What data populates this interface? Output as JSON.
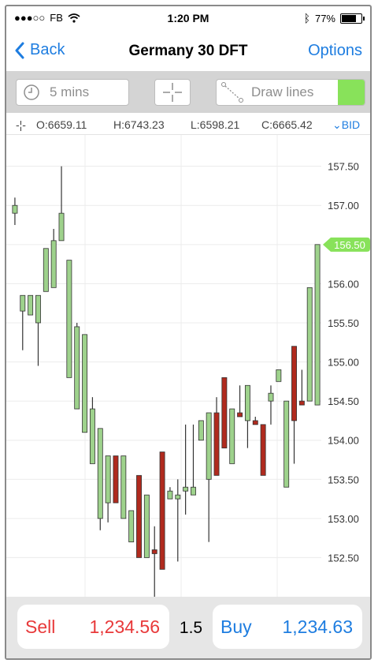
{
  "status_bar": {
    "carrier": "FB",
    "time": "1:20 PM",
    "battery": "77%",
    "battery_level": 0.77
  },
  "nav": {
    "back_label": "Back",
    "title": "Germany 30 DFT",
    "options_label": "Options"
  },
  "toolbar": {
    "timeframe": "5 mins",
    "draw_lines": "Draw lines"
  },
  "ohlc": {
    "open": "O:6659.11",
    "high": "H:6743.23",
    "low": "L:6598.21",
    "close": "C:6665.42",
    "price_side": "BID"
  },
  "chart_data": {
    "type": "candlestick",
    "y_ticks": [
      "157.50",
      "157.00",
      "156.50",
      "156.00",
      "155.50",
      "155.00",
      "154.50",
      "154.00",
      "153.50",
      "153.00",
      "152.50"
    ],
    "ylim": [
      152.0,
      157.9
    ],
    "current_price_label": "156.50",
    "current_price": 156.5,
    "up_color": "#9ed28c",
    "down_color": "#b02a1e",
    "candles": [
      {
        "o": 156.9,
        "c": 157.0,
        "h": 157.1,
        "l": 156.75
      },
      {
        "o": 155.65,
        "c": 155.85,
        "h": 155.85,
        "l": 155.15
      },
      {
        "o": 155.6,
        "c": 155.85,
        "h": 155.85,
        "l": 155.6
      },
      {
        "o": 155.5,
        "c": 155.85,
        "h": 155.85,
        "l": 154.95
      },
      {
        "o": 155.9,
        "c": 156.45,
        "h": 156.45,
        "l": 155.9
      },
      {
        "o": 155.95,
        "c": 156.55,
        "h": 156.7,
        "l": 155.95
      },
      {
        "o": 156.55,
        "c": 156.9,
        "h": 157.5,
        "l": 156.55
      },
      {
        "o": 154.8,
        "c": 156.3,
        "h": 156.3,
        "l": 154.8
      },
      {
        "o": 154.4,
        "c": 155.45,
        "h": 155.5,
        "l": 154.4
      },
      {
        "o": 154.1,
        "c": 155.35,
        "h": 155.35,
        "l": 154.1
      },
      {
        "o": 153.7,
        "c": 154.4,
        "h": 154.55,
        "l": 153.7
      },
      {
        "o": 153.0,
        "c": 154.15,
        "h": 154.15,
        "l": 152.85
      },
      {
        "o": 153.2,
        "c": 153.8,
        "h": 153.8,
        "l": 152.95
      },
      {
        "o": 153.8,
        "c": 153.2,
        "h": 153.8,
        "l": 153.2
      },
      {
        "o": 153.0,
        "c": 153.8,
        "h": 153.8,
        "l": 153.0
      },
      {
        "o": 152.7,
        "c": 153.1,
        "h": 153.1,
        "l": 152.7
      },
      {
        "o": 153.55,
        "c": 152.5,
        "h": 153.55,
        "l": 152.5
      },
      {
        "o": 152.5,
        "c": 153.3,
        "h": 153.3,
        "l": 152.5
      },
      {
        "o": 152.6,
        "c": 152.55,
        "h": 152.9,
        "l": 151.9
      },
      {
        "o": 153.85,
        "c": 152.35,
        "h": 153.85,
        "l": 152.35
      },
      {
        "o": 153.25,
        "c": 153.35,
        "h": 153.4,
        "l": 153.25
      },
      {
        "o": 153.25,
        "c": 153.3,
        "h": 153.5,
        "l": 152.45
      },
      {
        "o": 153.35,
        "c": 153.4,
        "h": 154.2,
        "l": 153.05
      },
      {
        "o": 153.3,
        "c": 153.4,
        "h": 154.2,
        "l": 153.3
      },
      {
        "o": 154.0,
        "c": 154.25,
        "h": 154.25,
        "l": 154.0
      },
      {
        "o": 153.5,
        "c": 154.35,
        "h": 154.35,
        "l": 152.7
      },
      {
        "o": 154.35,
        "c": 153.55,
        "h": 154.55,
        "l": 153.55
      },
      {
        "o": 154.8,
        "c": 153.9,
        "h": 154.8,
        "l": 153.9
      },
      {
        "o": 153.7,
        "c": 154.4,
        "h": 154.4,
        "l": 153.7
      },
      {
        "o": 154.35,
        "c": 154.3,
        "h": 154.7,
        "l": 154.3
      },
      {
        "o": 154.25,
        "c": 154.7,
        "h": 154.7,
        "l": 153.9
      },
      {
        "o": 154.25,
        "c": 154.2,
        "h": 154.3,
        "l": 154.2
      },
      {
        "o": 154.2,
        "c": 153.55,
        "h": 154.2,
        "l": 153.55
      },
      {
        "o": 154.5,
        "c": 154.6,
        "h": 154.7,
        "l": 154.2
      },
      {
        "o": 154.75,
        "c": 154.9,
        "h": 154.9,
        "l": 154.75
      },
      {
        "o": 153.4,
        "c": 154.5,
        "h": 154.5,
        "l": 153.4
      },
      {
        "o": 155.2,
        "c": 154.25,
        "h": 155.2,
        "l": 153.7
      },
      {
        "o": 154.5,
        "c": 154.45,
        "h": 154.9,
        "l": 154.45
      },
      {
        "o": 154.5,
        "c": 155.95,
        "h": 155.95,
        "l": 154.5
      },
      {
        "o": 154.45,
        "c": 156.5,
        "h": 156.5,
        "l": 154.45
      }
    ]
  },
  "trade": {
    "sell_label": "Sell",
    "sell_price": "1,234.56",
    "spread": "1.5",
    "buy_label": "Buy",
    "buy_price": "1,234.63"
  }
}
